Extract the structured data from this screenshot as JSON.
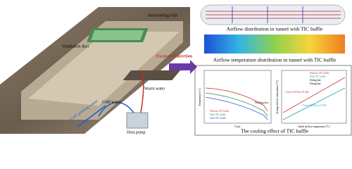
{
  "left_panel": {
    "labels": {
      "surrounding_rock": "Surrounding rock",
      "ventilation_duct": "Ventilation duct",
      "excavated_direction": "Excavated direction",
      "cold_water": "Cold water",
      "warm_water": "Warm water",
      "cold_gushing_water": "Cold gushing water",
      "heat_pump": "Heat pump"
    }
  },
  "right_panel": {
    "airflow_caption": "Airflow distribution in tunnel with TIC baffle",
    "temperature_caption": "Airflow temperature distribution in tunnel with TIC baffle",
    "effect_caption": "The cooling effect of TIC baffle",
    "left_chart": {
      "y_label": "Temperature (°C)",
      "x_label": "Y (m)",
      "annotation": "Working face",
      "legend": [
        "Without TIC baffle",
        "With TIC baffle",
        "With TIC baffle"
      ]
    },
    "right_chart": {
      "y_label": "Average airflow temperature (°C)",
      "x_label": "Initial airflow temperature (°C)",
      "legend": [
        "Without TIC baffle",
        "With TIC baffle",
        "Fitting line",
        "Fitting line"
      ],
      "equation_top": "Tout=0.497Tin+19.366",
      "equation_bottom": "Tout=0.524Tin+17.933"
    }
  }
}
